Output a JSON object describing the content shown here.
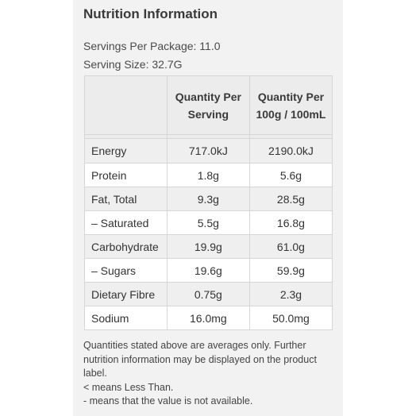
{
  "title": "Nutrition Information",
  "servings_per_package": "Servings Per Package: 11.0",
  "serving_size": "Serving Size: 32.7G",
  "table": {
    "col1_header": "Quantity Per Serving",
    "col2_header": "Quantity Per 100g / 100mL",
    "rows": [
      {
        "name": "Energy",
        "per_serving": "717.0kJ",
        "per_100": "2190.0kJ"
      },
      {
        "name": "Protein",
        "per_serving": "1.8g",
        "per_100": "5.6g"
      },
      {
        "name": "Fat, Total",
        "per_serving": "9.3g",
        "per_100": "28.5g"
      },
      {
        "name": "– Saturated",
        "per_serving": "5.5g",
        "per_100": "16.8g"
      },
      {
        "name": "Carbohydrate",
        "per_serving": "19.9g",
        "per_100": "61.0g"
      },
      {
        "name": "– Sugars",
        "per_serving": "19.6g",
        "per_100": "59.9g"
      },
      {
        "name": "Dietary Fibre",
        "per_serving": "0.75g",
        "per_100": "2.3g"
      },
      {
        "name": "Sodium",
        "per_serving": "16.0mg",
        "per_100": "50.0mg"
      }
    ]
  },
  "notes": [
    "Quantities stated above are averages only. Further nutrition information may be displayed on the product label.",
    "< means Less Than.",
    "- means that the value is not available."
  ]
}
